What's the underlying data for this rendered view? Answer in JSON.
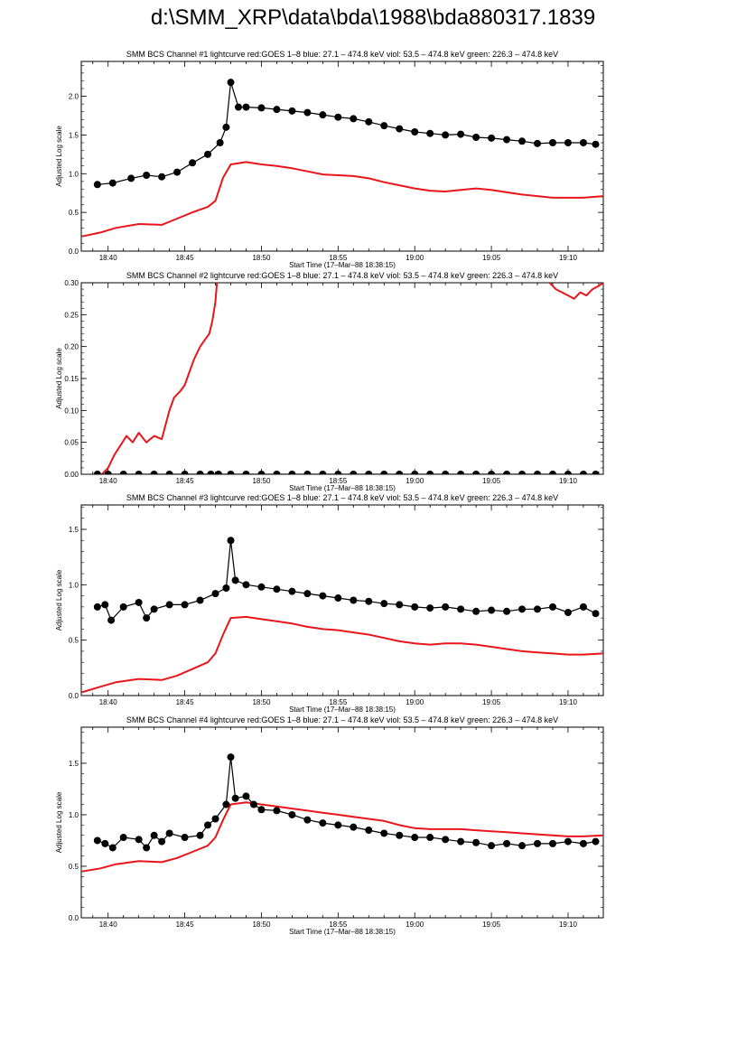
{
  "title": "d:\\SMM_XRP\\data\\bda\\1988\\bda880317.1839",
  "colors": {
    "goes": "#e8161b",
    "bcs": "#000000"
  },
  "chart_data": [
    {
      "type": "line",
      "title": "SMM BCS Channel #1 lightcurve  red:GOES 1–8  blue: 27.1 – 474.8 keV  viol: 53.5 – 474.8 keV  green: 226.3 – 474.8 keV",
      "xlabel": "Start Time (17–Mar–88 18:38:15)",
      "ylabel": "Adjusted Log scale",
      "x_ticks": [
        "18:40",
        "18:45",
        "18:50",
        "18:55",
        "19:00",
        "19:05",
        "19:10"
      ],
      "y_ticks": [
        "0.0",
        "0.5",
        "1.0",
        "1.5",
        "2.0"
      ],
      "ylim": [
        0,
        2.45
      ],
      "series": [
        {
          "color": "black",
          "marker": "circle",
          "x": [
            39.3,
            40.3,
            41.5,
            42.5,
            43.5,
            44.5,
            45.5,
            46.5,
            47.3,
            47.7,
            48.0,
            48.5,
            49,
            50,
            51,
            52,
            53,
            54,
            55,
            56,
            57,
            58,
            59,
            60,
            61,
            62,
            63,
            64,
            65,
            66,
            67,
            68,
            69,
            70,
            71,
            71.8
          ],
          "y": [
            0.86,
            0.88,
            0.94,
            0.98,
            0.96,
            1.02,
            1.14,
            1.25,
            1.4,
            1.6,
            2.18,
            1.86,
            1.86,
            1.85,
            1.83,
            1.81,
            1.79,
            1.76,
            1.73,
            1.71,
            1.67,
            1.62,
            1.58,
            1.54,
            1.52,
            1.5,
            1.51,
            1.47,
            1.46,
            1.44,
            1.42,
            1.39,
            1.4,
            1.4,
            1.4,
            1.38
          ]
        },
        {
          "color": "red",
          "x": [
            38.3,
            39.5,
            40.5,
            42,
            43.5,
            44.5,
            45.5,
            46.5,
            47,
            47.5,
            48,
            49,
            50,
            51,
            52,
            53,
            54,
            55,
            56,
            57,
            58,
            59,
            60,
            61,
            62,
            63,
            64,
            65,
            66,
            67,
            68,
            69,
            70,
            71,
            72.3
          ],
          "y": [
            0.19,
            0.24,
            0.3,
            0.35,
            0.34,
            0.42,
            0.5,
            0.57,
            0.65,
            0.95,
            1.12,
            1.15,
            1.12,
            1.1,
            1.07,
            1.03,
            0.99,
            0.98,
            0.97,
            0.94,
            0.89,
            0.85,
            0.81,
            0.78,
            0.77,
            0.79,
            0.81,
            0.79,
            0.76,
            0.73,
            0.71,
            0.69,
            0.69,
            0.69,
            0.71
          ]
        }
      ]
    },
    {
      "type": "line",
      "title": "SMM BCS Channel #2 lightcurve  red:GOES 1–8  blue: 27.1 – 474.8 keV  viol: 53.5 – 474.8 keV  green: 226.3 – 474.8 keV",
      "xlabel": "Start Time (17–Mar–88 18:38:15)",
      "ylabel": "Adjusted Log scale",
      "x_ticks": [
        "18:40",
        "18:45",
        "18:50",
        "18:55",
        "19:00",
        "19:05",
        "19:10"
      ],
      "y_ticks": [
        "0.00",
        "0.05",
        "0.10",
        "0.15",
        "0.20",
        "0.25",
        "0.30"
      ],
      "ylim": [
        0,
        0.3
      ],
      "series": [
        {
          "color": "black",
          "marker": "circle",
          "x": [
            39.3,
            40,
            41,
            42,
            43,
            44,
            45,
            46,
            46.7,
            47.2,
            48,
            49,
            50,
            51,
            52,
            53,
            54,
            55,
            56,
            57,
            58,
            59,
            60,
            61,
            62,
            63,
            64,
            65,
            66,
            67,
            68,
            69,
            70,
            71,
            71.8
          ],
          "y": [
            0,
            0,
            0,
            0,
            0,
            0,
            0,
            0,
            0,
            0,
            0,
            0,
            0,
            0,
            0,
            0,
            0,
            0,
            0,
            0,
            0,
            0,
            0,
            0,
            0,
            0,
            0,
            0,
            0,
            0,
            0,
            0,
            0,
            0,
            0
          ]
        },
        {
          "color": "red",
          "x": [
            39.6,
            40.0,
            40.4,
            40.8,
            41.2,
            41.6,
            42.0,
            42.5,
            43.0,
            43.5,
            44.0,
            44.3,
            44.7,
            45.0,
            45.3,
            45.6,
            46.0,
            46.3,
            46.6,
            46.8,
            47.0,
            47.1
          ],
          "y": [
            0.0,
            0.01,
            0.03,
            0.045,
            0.06,
            0.05,
            0.065,
            0.05,
            0.06,
            0.055,
            0.1,
            0.12,
            0.13,
            0.14,
            0.16,
            0.18,
            0.2,
            0.21,
            0.22,
            0.24,
            0.27,
            0.3
          ]
        },
        {
          "color": "red",
          "x": [
            68.8,
            69.2,
            69.6,
            70.0,
            70.4,
            70.8,
            71.2,
            71.6,
            72.0,
            72.3
          ],
          "y": [
            0.3,
            0.29,
            0.285,
            0.28,
            0.275,
            0.285,
            0.28,
            0.29,
            0.295,
            0.3
          ]
        }
      ]
    },
    {
      "type": "line",
      "title": "SMM BCS Channel #3 lightcurve  red:GOES 1–8  blue: 27.1 – 474.8 keV  viol: 53.5 – 474.8 keV  green: 226.3 – 474.8 keV",
      "xlabel": "Start Time (17–Mar–88 18:38:15)",
      "ylabel": "Adjusted Log scale",
      "x_ticks": [
        "18:40",
        "18:45",
        "18:50",
        "18:55",
        "19:00",
        "19:05",
        "19:10"
      ],
      "y_ticks": [
        "0.0",
        "0.5",
        "1.0",
        "1.5"
      ],
      "ylim": [
        0,
        1.72
      ],
      "series": [
        {
          "color": "black",
          "marker": "circle",
          "x": [
            39.3,
            39.8,
            40.2,
            41,
            42,
            42.5,
            43,
            44,
            45,
            46,
            47,
            47.7,
            48.0,
            48.3,
            49,
            50,
            51,
            52,
            53,
            54,
            55,
            56,
            57,
            58,
            59,
            60,
            61,
            62,
            63,
            64,
            65,
            66,
            67,
            68,
            69,
            70,
            71,
            71.8
          ],
          "y": [
            0.8,
            0.82,
            0.68,
            0.8,
            0.84,
            0.7,
            0.78,
            0.82,
            0.82,
            0.86,
            0.92,
            0.97,
            1.4,
            1.04,
            1.0,
            0.98,
            0.96,
            0.94,
            0.92,
            0.9,
            0.88,
            0.86,
            0.85,
            0.83,
            0.82,
            0.8,
            0.79,
            0.8,
            0.78,
            0.76,
            0.77,
            0.76,
            0.78,
            0.78,
            0.8,
            0.75,
            0.8,
            0.74
          ]
        },
        {
          "color": "red",
          "x": [
            38.3,
            39.5,
            40.5,
            42,
            43.5,
            44.5,
            45.5,
            46.5,
            47,
            47.5,
            48,
            49,
            50,
            51,
            52,
            53,
            54,
            55,
            56,
            57,
            58,
            59,
            60,
            61,
            62,
            63,
            64,
            65,
            66,
            67,
            68,
            69,
            70,
            71,
            72.3
          ],
          "y": [
            0.03,
            0.08,
            0.12,
            0.15,
            0.14,
            0.18,
            0.24,
            0.3,
            0.38,
            0.55,
            0.7,
            0.71,
            0.69,
            0.67,
            0.65,
            0.62,
            0.6,
            0.59,
            0.57,
            0.55,
            0.52,
            0.49,
            0.47,
            0.46,
            0.47,
            0.47,
            0.46,
            0.44,
            0.42,
            0.4,
            0.39,
            0.38,
            0.37,
            0.37,
            0.38
          ]
        }
      ]
    },
    {
      "type": "line",
      "title": "SMM BCS Channel #4 lightcurve  red:GOES 1–8  blue: 27.1 – 474.8 keV  viol: 53.5 – 474.8 keV  green: 226.3 – 474.8 keV",
      "xlabel": "Start Time (17–Mar–88 18:38:15)",
      "ylabel": "Adjusted Log scale",
      "x_ticks": [
        "18:40",
        "18:45",
        "18:50",
        "18:55",
        "19:00",
        "19:05",
        "19:10"
      ],
      "y_ticks": [
        "0.0",
        "0.5",
        "1.0",
        "1.5"
      ],
      "ylim": [
        0,
        1.85
      ],
      "series": [
        {
          "color": "black",
          "marker": "circle",
          "x": [
            39.3,
            39.8,
            40.3,
            41,
            42,
            42.5,
            43,
            43.5,
            44,
            45,
            46,
            46.5,
            47,
            47.7,
            48.0,
            48.3,
            49,
            49.5,
            50,
            51,
            52,
            53,
            54,
            55,
            56,
            57,
            58,
            59,
            60,
            61,
            62,
            63,
            64,
            65,
            66,
            67,
            68,
            69,
            70,
            71,
            71.8
          ],
          "y": [
            0.75,
            0.72,
            0.68,
            0.78,
            0.76,
            0.68,
            0.8,
            0.74,
            0.82,
            0.78,
            0.8,
            0.9,
            0.96,
            1.1,
            1.56,
            1.16,
            1.18,
            1.1,
            1.05,
            1.04,
            1.0,
            0.95,
            0.92,
            0.9,
            0.88,
            0.85,
            0.82,
            0.8,
            0.78,
            0.78,
            0.76,
            0.74,
            0.73,
            0.7,
            0.72,
            0.7,
            0.72,
            0.72,
            0.74,
            0.72,
            0.74
          ]
        },
        {
          "color": "red",
          "x": [
            38.3,
            39.5,
            40.5,
            42,
            43.5,
            44.5,
            45.5,
            46.5,
            47,
            47.5,
            48,
            49,
            50,
            51,
            52,
            53,
            54,
            55,
            56,
            57,
            58,
            59,
            60,
            61,
            62,
            63,
            64,
            65,
            66,
            67,
            68,
            69,
            70,
            71,
            72.3
          ],
          "y": [
            0.45,
            0.48,
            0.52,
            0.55,
            0.54,
            0.58,
            0.64,
            0.7,
            0.78,
            0.95,
            1.1,
            1.12,
            1.1,
            1.08,
            1.06,
            1.04,
            1.02,
            1.0,
            0.98,
            0.96,
            0.94,
            0.9,
            0.87,
            0.86,
            0.86,
            0.86,
            0.85,
            0.84,
            0.83,
            0.82,
            0.81,
            0.8,
            0.79,
            0.79,
            0.8
          ]
        }
      ]
    }
  ]
}
